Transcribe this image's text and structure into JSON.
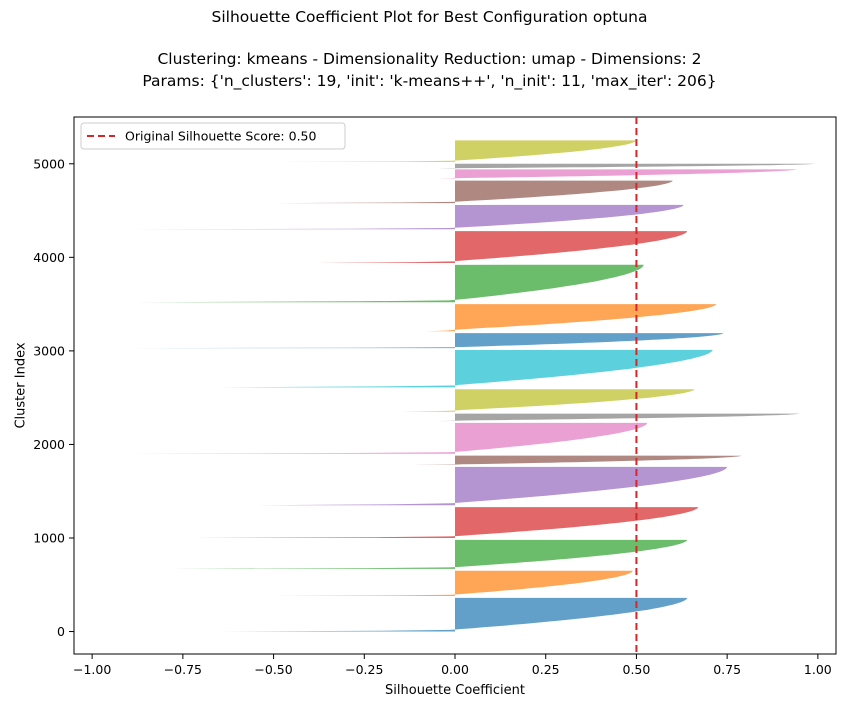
{
  "chart_data": {
    "type": "area",
    "title": "Silhouette Coefficient Plot for Best Configuration optuna",
    "subtitle_lines": [
      "Clustering: kmeans - Dimensionality Reduction: umap - Dimensions: 2",
      "Params: {'n_clusters': 19, 'init': 'k-means++', 'n_init': 11, 'max_iter': 206}"
    ],
    "xlabel": "Silhouette Coefficient",
    "ylabel": "Cluster Index",
    "xlim": [
      -1.05,
      1.05
    ],
    "ylim": [
      -240,
      5500
    ],
    "xticks": [
      -1.0,
      -0.75,
      -0.5,
      -0.25,
      0.0,
      0.25,
      0.5,
      0.75,
      1.0
    ],
    "xtick_labels": [
      "−1.00",
      "−0.75",
      "−0.50",
      "−0.25",
      "0.00",
      "0.25",
      "0.50",
      "0.75",
      "1.00"
    ],
    "yticks": [
      0,
      1000,
      2000,
      3000,
      4000,
      5000
    ],
    "ytick_labels": [
      "0",
      "1000",
      "2000",
      "3000",
      "4000",
      "5000"
    ],
    "reference_line": {
      "x": 0.5,
      "label": "Original Silhouette Score: 0.50",
      "color": "#d62728",
      "style": "dashed"
    },
    "legend_position": "top-left",
    "grid": false,
    "clusters": [
      {
        "cluster": 0,
        "y_start": 0,
        "y_end": 360,
        "min": -0.65,
        "max": 0.64,
        "color": "#1f77b4"
      },
      {
        "cluster": 1,
        "y_start": 380,
        "y_end": 650,
        "min": -0.5,
        "max": 0.49,
        "color": "#ff7f0e"
      },
      {
        "cluster": 2,
        "y_start": 670,
        "y_end": 980,
        "min": -0.78,
        "max": 0.64,
        "color": "#2ca02c"
      },
      {
        "cluster": 3,
        "y_start": 1000,
        "y_end": 1330,
        "min": -0.72,
        "max": 0.67,
        "color": "#d62728"
      },
      {
        "cluster": 4,
        "y_start": 1350,
        "y_end": 1760,
        "min": -0.55,
        "max": 0.75,
        "color": "#9467bd"
      },
      {
        "cluster": 5,
        "y_start": 1780,
        "y_end": 1880,
        "min": -0.12,
        "max": 0.79,
        "color": "#8c564b"
      },
      {
        "cluster": 6,
        "y_start": 1900,
        "y_end": 2230,
        "min": -0.92,
        "max": 0.53,
        "color": "#e377c2"
      },
      {
        "cluster": 7,
        "y_start": 2250,
        "y_end": 2330,
        "min": -0.05,
        "max": 0.95,
        "color": "#7f7f7f"
      },
      {
        "cluster": 8,
        "y_start": 2350,
        "y_end": 2590,
        "min": -0.15,
        "max": 0.66,
        "color": "#bcbd22"
      },
      {
        "cluster": 9,
        "y_start": 2610,
        "y_end": 3010,
        "min": -0.65,
        "max": 0.71,
        "color": "#17becf"
      },
      {
        "cluster": 10,
        "y_start": 3030,
        "y_end": 3190,
        "min": -0.95,
        "max": 0.74,
        "color": "#1f77b4"
      },
      {
        "cluster": 11,
        "y_start": 3210,
        "y_end": 3500,
        "min": -0.08,
        "max": 0.72,
        "color": "#ff7f0e"
      },
      {
        "cluster": 12,
        "y_start": 3520,
        "y_end": 3920,
        "min": -0.88,
        "max": 0.52,
        "color": "#2ca02c"
      },
      {
        "cluster": 13,
        "y_start": 3940,
        "y_end": 4280,
        "min": -0.38,
        "max": 0.64,
        "color": "#d62728"
      },
      {
        "cluster": 14,
        "y_start": 4300,
        "y_end": 4560,
        "min": -0.92,
        "max": 0.63,
        "color": "#9467bd"
      },
      {
        "cluster": 15,
        "y_start": 4580,
        "y_end": 4820,
        "min": -0.5,
        "max": 0.6,
        "color": "#8c564b"
      },
      {
        "cluster": 16,
        "y_start": 4840,
        "y_end": 4940,
        "min": -0.05,
        "max": 0.94,
        "color": "#e377c2"
      },
      {
        "cluster": 17,
        "y_start": 4950,
        "y_end": 5000,
        "min": -0.05,
        "max": 0.99,
        "color": "#7f7f7f"
      },
      {
        "cluster": 18,
        "y_start": 5020,
        "y_end": 5250,
        "min": -0.48,
        "max": 0.5,
        "color": "#bcbd22"
      }
    ]
  }
}
